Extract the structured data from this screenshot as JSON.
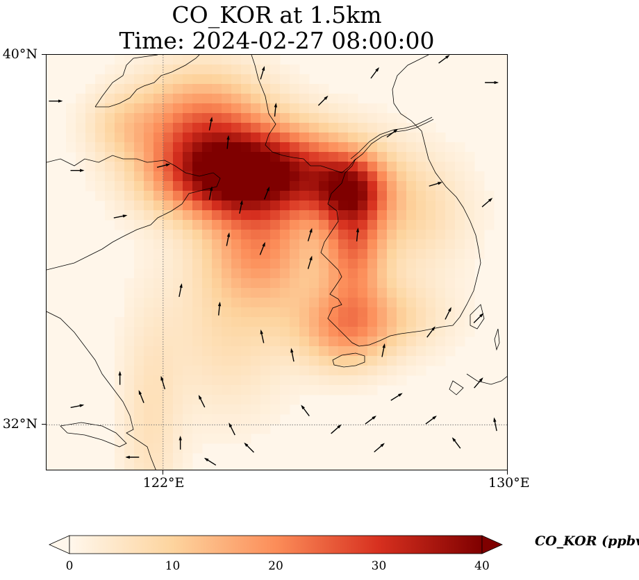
{
  "title": {
    "line1": "CO_KOR at 1.5km",
    "line2": "Time: 2024-02-27 08:00:00"
  },
  "map": {
    "projection": "lat-lon",
    "lon_range": [
      119.3,
      130.0
    ],
    "lat_range": [
      31.0,
      40.0
    ],
    "gridlines": {
      "style": "dotted",
      "lons": [
        122
      ],
      "lats": [
        32
      ]
    },
    "lat_ticks": [
      {
        "value": 40,
        "label": "40°N"
      },
      {
        "value": 32,
        "label": "32°N"
      }
    ],
    "lon_ticks": [
      {
        "value": 122,
        "label": "122°E"
      },
      {
        "value": 130,
        "label": "130°E"
      }
    ],
    "features": [
      "coastlines",
      "country-borders",
      "wind-vectors"
    ]
  },
  "colorbar": {
    "label": "CO_KOR (ppbv)",
    "cmap": "OrRd",
    "range": [
      0,
      40
    ],
    "extend": "both",
    "ticks": [
      {
        "value": 0,
        "label": "0"
      },
      {
        "value": 10,
        "label": "10"
      },
      {
        "value": 20,
        "label": "20"
      },
      {
        "value": 30,
        "label": "30"
      },
      {
        "value": 40,
        "label": "40"
      }
    ],
    "colors": [
      "#fff7ec",
      "#fdd49e",
      "#fc8d59",
      "#d7301f",
      "#7f0000"
    ]
  },
  "field": {
    "units": "ppbv",
    "plumes": [
      {
        "lon": 122.9,
        "lat": 38.3,
        "peak": 24,
        "sx": 1.1,
        "sy": 0.9
      },
      {
        "lon": 123.7,
        "lat": 37.3,
        "peak": 29,
        "sx": 1.2,
        "sy": 0.6
      },
      {
        "lon": 125.0,
        "lat": 37.6,
        "peak": 18,
        "sx": 1.2,
        "sy": 0.7
      },
      {
        "lon": 126.3,
        "lat": 37.1,
        "peak": 22,
        "sx": 0.6,
        "sy": 0.5
      },
      {
        "lon": 126.4,
        "lat": 35.9,
        "peak": 19,
        "sx": 0.5,
        "sy": 0.9
      },
      {
        "lon": 124.3,
        "lat": 35.8,
        "peak": 17,
        "sx": 0.9,
        "sy": 0.8
      },
      {
        "lon": 126.6,
        "lat": 34.3,
        "peak": 12,
        "sx": 1.2,
        "sy": 0.6
      },
      {
        "lon": 126.2,
        "lat": 33.9,
        "peak": 9,
        "sx": 0.7,
        "sy": 0.6
      },
      {
        "lon": 123.5,
        "lat": 34.0,
        "peak": 7,
        "sx": 1.0,
        "sy": 1.3
      },
      {
        "lon": 121.7,
        "lat": 32.0,
        "peak": 6,
        "sx": 0.5,
        "sy": 1.8
      },
      {
        "lon": 127.6,
        "lat": 36.6,
        "peak": 9,
        "sx": 1.0,
        "sy": 0.9
      },
      {
        "lon": 121.0,
        "lat": 38.5,
        "peak": 6,
        "sx": 0.6,
        "sy": 0.5
      }
    ]
  },
  "wind_vectors": [
    {
      "lon": 119.5,
      "lat": 39.0,
      "u": 1,
      "v": 0
    },
    {
      "lon": 120.0,
      "lat": 37.5,
      "u": 1,
      "v": 0
    },
    {
      "lon": 121.0,
      "lat": 36.5,
      "u": 1,
      "v": 0.2
    },
    {
      "lon": 122.0,
      "lat": 37.6,
      "u": 0.8,
      "v": 0.2
    },
    {
      "lon": 123.1,
      "lat": 38.5,
      "u": 0.2,
      "v": 1
    },
    {
      "lon": 123.5,
      "lat": 38.1,
      "u": 0.1,
      "v": 1
    },
    {
      "lon": 124.3,
      "lat": 39.6,
      "u": 0.3,
      "v": 1
    },
    {
      "lon": 124.6,
      "lat": 38.8,
      "u": 0.1,
      "v": 1
    },
    {
      "lon": 125.7,
      "lat": 39.0,
      "u": 0.5,
      "v": 0.5
    },
    {
      "lon": 126.9,
      "lat": 39.6,
      "u": 0.6,
      "v": 0.8
    },
    {
      "lon": 128.5,
      "lat": 39.9,
      "u": 0.8,
      "v": 0.6
    },
    {
      "lon": 129.6,
      "lat": 39.4,
      "u": 1,
      "v": 0
    },
    {
      "lon": 127.3,
      "lat": 38.3,
      "u": 0.8,
      "v": 0.6
    },
    {
      "lon": 128.3,
      "lat": 37.2,
      "u": 1,
      "v": 0.3
    },
    {
      "lon": 129.5,
      "lat": 36.8,
      "u": 0.7,
      "v": 0.6
    },
    {
      "lon": 123.1,
      "lat": 37.0,
      "u": 0.2,
      "v": 1
    },
    {
      "lon": 123.8,
      "lat": 36.7,
      "u": 0.2,
      "v": 1
    },
    {
      "lon": 124.4,
      "lat": 37.0,
      "u": 0.4,
      "v": 1
    },
    {
      "lon": 123.5,
      "lat": 36.0,
      "u": 0.2,
      "v": 1
    },
    {
      "lon": 124.3,
      "lat": 35.8,
      "u": 0.4,
      "v": 1
    },
    {
      "lon": 125.4,
      "lat": 36.1,
      "u": 0.3,
      "v": 1
    },
    {
      "lon": 126.5,
      "lat": 36.1,
      "u": 0.1,
      "v": 1
    },
    {
      "lon": 125.4,
      "lat": 35.5,
      "u": 0.3,
      "v": 1
    },
    {
      "lon": 122.4,
      "lat": 34.9,
      "u": 0.2,
      "v": 1
    },
    {
      "lon": 123.3,
      "lat": 34.5,
      "u": 0.1,
      "v": 1
    },
    {
      "lon": 124.3,
      "lat": 33.9,
      "u": -0.2,
      "v": 0.9
    },
    {
      "lon": 125.0,
      "lat": 33.5,
      "u": -0.2,
      "v": 1
    },
    {
      "lon": 127.1,
      "lat": 33.6,
      "u": 0.2,
      "v": 1
    },
    {
      "lon": 128.6,
      "lat": 34.4,
      "u": 0.5,
      "v": 1
    },
    {
      "lon": 128.2,
      "lat": 34.0,
      "u": 0.6,
      "v": 0.8
    },
    {
      "lon": 129.3,
      "lat": 34.3,
      "u": 0.7,
      "v": 0.7
    },
    {
      "lon": 121.0,
      "lat": 33.0,
      "u": 0,
      "v": 1
    },
    {
      "lon": 121.5,
      "lat": 32.6,
      "u": -0.4,
      "v": 1
    },
    {
      "lon": 122.0,
      "lat": 32.9,
      "u": -0.3,
      "v": 1
    },
    {
      "lon": 122.9,
      "lat": 32.5,
      "u": -0.5,
      "v": 1
    },
    {
      "lon": 123.6,
      "lat": 31.9,
      "u": -0.4,
      "v": 0.8
    },
    {
      "lon": 125.3,
      "lat": 32.3,
      "u": -0.6,
      "v": 0.8
    },
    {
      "lon": 126.0,
      "lat": 31.9,
      "u": 0.8,
      "v": 0.7
    },
    {
      "lon": 126.8,
      "lat": 32.1,
      "u": 0.8,
      "v": 0.6
    },
    {
      "lon": 127.4,
      "lat": 32.6,
      "u": 0.8,
      "v": 0.5
    },
    {
      "lon": 128.2,
      "lat": 32.1,
      "u": 0.8,
      "v": 0.6
    },
    {
      "lon": 127.0,
      "lat": 31.5,
      "u": 0.7,
      "v": 0.6
    },
    {
      "lon": 124.0,
      "lat": 31.5,
      "u": -0.6,
      "v": 0.6
    },
    {
      "lon": 122.4,
      "lat": 31.6,
      "u": 0,
      "v": 1
    },
    {
      "lon": 123.1,
      "lat": 31.2,
      "u": -0.8,
      "v": 0.5
    },
    {
      "lon": 121.3,
      "lat": 31.3,
      "u": -1,
      "v": 0
    },
    {
      "lon": 120.0,
      "lat": 32.4,
      "u": 1,
      "v": 0.2
    },
    {
      "lon": 129.3,
      "lat": 32.9,
      "u": 0.6,
      "v": 0.7
    },
    {
      "lon": 129.7,
      "lat": 32.0,
      "u": -0.2,
      "v": 1
    },
    {
      "lon": 128.8,
      "lat": 31.6,
      "u": -0.6,
      "v": 0.8
    }
  ]
}
